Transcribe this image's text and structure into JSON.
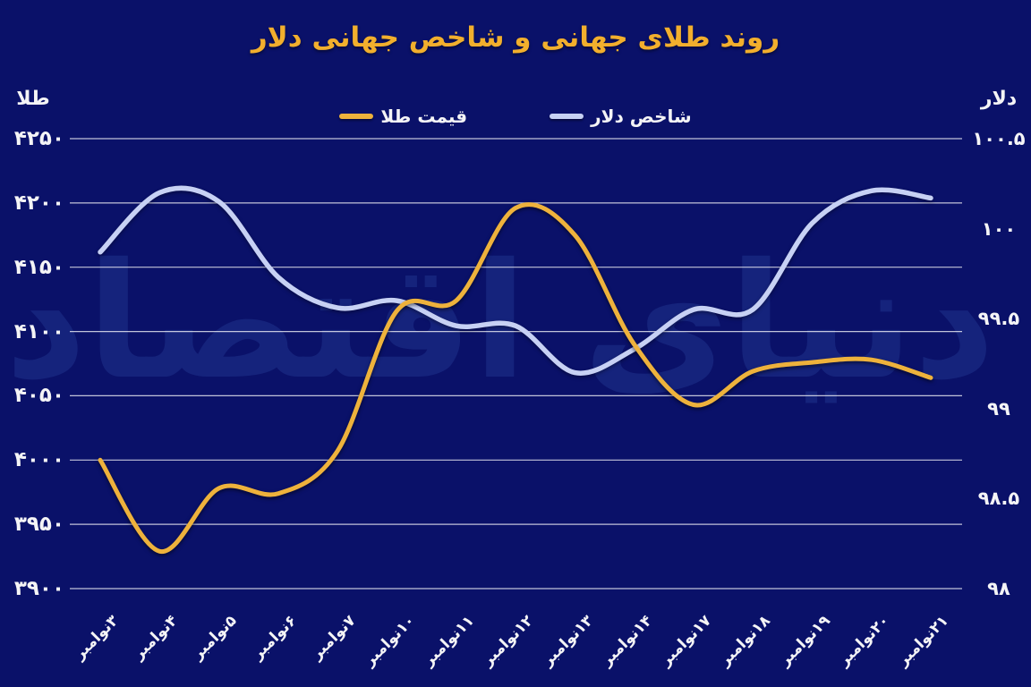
{
  "title": "روند طلای جهانی و شاخص جهانی دلار",
  "watermark": "دنیای اقتصاد",
  "legend": [
    {
      "label": "قیمت طلا",
      "color": "#EEB23C"
    },
    {
      "label": "شاخص دلار",
      "color": "#C7D1F4"
    }
  ],
  "left_axis": {
    "title": "طلا",
    "labels": [
      "۴۲۵۰",
      "۴۲۰۰",
      "۴۱۵۰",
      "۴۱۰۰",
      "۴۰۵۰",
      "۴۰۰۰",
      "۳۹۵۰",
      "۳۹۰۰"
    ]
  },
  "right_axis": {
    "title": "دلار",
    "labels": [
      "۱۰۰.۵",
      "۱۰۰",
      "۹۹.۵",
      "۹۹",
      "۹۸.۵",
      "۹۸"
    ]
  },
  "x_axis": {
    "labels": [
      "۳نوامبر",
      "۴نوامبر",
      "۵نوامبر",
      "۶نوامبر",
      "۷نوامبر",
      "۱۰نوامبر",
      "۱۱نوامبر",
      "۱۲نوامبر",
      "۱۳نوامبر",
      "۱۴نوامبر",
      "۱۷نوامبر",
      "۱۸نوامبر",
      "۱۹نوامبر",
      "۲۰نوامبر",
      "۲۱نوامبر"
    ]
  },
  "colors": {
    "background": "#0A1169",
    "title": "#F2AF2D",
    "gold_line": "#EEB23C",
    "dollar_line": "#C7D1F4",
    "grid": "rgba(255,255,255,0.75)",
    "text": "#F4F4F6",
    "watermark": "#21368F"
  },
  "chart_data": {
    "type": "line",
    "title": "روند طلای جهانی و شاخص جهانی دلار",
    "categories": [
      "۳نوامبر",
      "۴نوامبر",
      "۵نوامبر",
      "۶نوامبر",
      "۷نوامبر",
      "۱۰نوامبر",
      "۱۱نوامبر",
      "۱۲نوامبر",
      "۱۳نوامبر",
      "۱۴نوامبر",
      "۱۷نوامبر",
      "۱۸نوامبر",
      "۱۹نوامبر",
      "۲۰نوامبر",
      "۲۱نوامبر"
    ],
    "series": [
      {
        "name": "قیمت طلا",
        "axis": "left",
        "color": "#EEB23C",
        "values": [
          4000,
          3929,
          3978,
          3974,
          4007,
          4116,
          4124,
          4196,
          4175,
          4090,
          4043,
          4069,
          4076,
          4078,
          4064
        ]
      },
      {
        "name": "شاخص دلار",
        "axis": "right",
        "color": "#C7D1F4",
        "values": [
          99.87,
          100.2,
          100.15,
          99.73,
          99.56,
          99.6,
          99.46,
          99.46,
          99.2,
          99.33,
          99.55,
          99.55,
          100.03,
          100.21,
          100.17
        ]
      }
    ],
    "left_axis": {
      "label": "طلا",
      "ticks": [
        4250,
        4200,
        4150,
        4100,
        4050,
        4000,
        3950,
        3900
      ],
      "ylim": [
        3900,
        4250
      ]
    },
    "right_axis": {
      "label": "دلار",
      "ticks": [
        100.5,
        100,
        99.5,
        99,
        98.5,
        98
      ],
      "ylim": [
        98,
        100.5
      ]
    },
    "grid": true,
    "legend_position": "top",
    "line_smoothing": true
  }
}
